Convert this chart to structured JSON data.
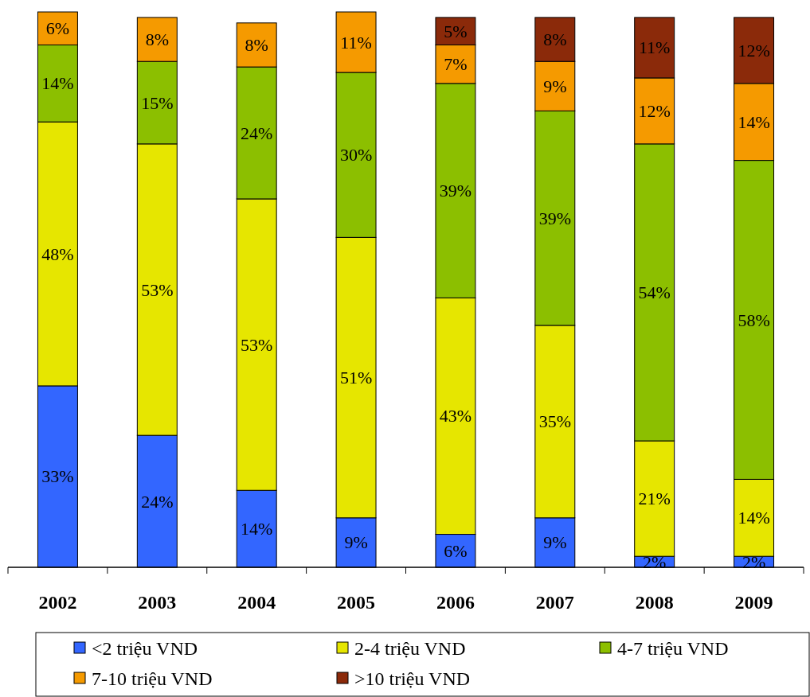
{
  "chart_data": {
    "type": "bar",
    "stacked": true,
    "categories": [
      "2002",
      "2003",
      "2004",
      "2005",
      "2006",
      "2007",
      "2008",
      "2009"
    ],
    "series": [
      {
        "name": "<2 triệu VND",
        "color": "#3366ff",
        "values": [
          33,
          24,
          14,
          9,
          6,
          9,
          2,
          2
        ],
        "value_labels": [
          "33%",
          "24%",
          "14%",
          "9%",
          "6%",
          "9%",
          "2%",
          "2%"
        ]
      },
      {
        "name": "2-4 triệu VND",
        "color": "#e6e600",
        "values": [
          48,
          53,
          53,
          51,
          43,
          35,
          21,
          14
        ],
        "value_labels": [
          "48%",
          "53%",
          "53%",
          "51%",
          "43%",
          "35%",
          "21%",
          "14%"
        ]
      },
      {
        "name": "4-7 triệu VND",
        "color": "#8cbf00",
        "values": [
          14,
          15,
          24,
          30,
          39,
          39,
          54,
          58
        ],
        "value_labels": [
          "14%",
          "15%",
          "24%",
          "30%",
          "39%",
          "39%",
          "54%",
          "58%"
        ]
      },
      {
        "name": "7-10 triệu VND",
        "color": "#f59a00",
        "values": [
          6,
          8,
          8,
          11,
          7,
          9,
          12,
          14
        ],
        "value_labels": [
          "6%",
          "8%",
          "8%",
          "11%",
          "7%",
          "9%",
          "12%",
          "14%"
        ]
      },
      {
        "name": ">10 triệu VND",
        "color": "#8b2a0a",
        "values": [
          null,
          null,
          null,
          null,
          5,
          8,
          11,
          12
        ],
        "value_labels": [
          null,
          null,
          null,
          null,
          "5%",
          "8%",
          "11%",
          "12%"
        ]
      }
    ],
    "legend": "bottom"
  }
}
